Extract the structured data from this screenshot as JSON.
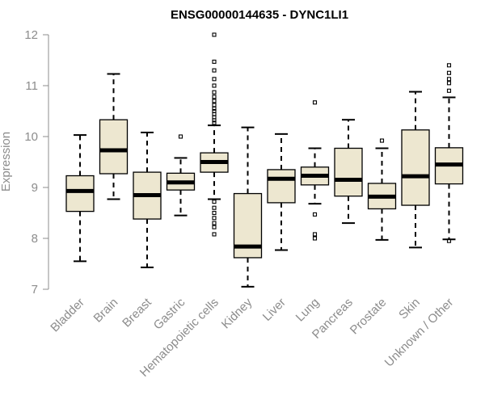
{
  "chart_data": {
    "type": "boxplot",
    "title": "ENSG00000144635 - DYNC1LI1",
    "xlabel": "",
    "ylabel": "Expression",
    "ylim": [
      7,
      12
    ],
    "yticks": [
      7,
      8,
      9,
      10,
      11,
      12
    ],
    "box_fill": "#ede7d0",
    "categories": [
      "Bladder",
      "Brain",
      "Breast",
      "Gastric",
      "Hematopoietic cells",
      "Kidney",
      "Liver",
      "Lung",
      "Pancreas",
      "Prostate",
      "Skin",
      "Unknown / Other"
    ],
    "boxes": [
      {
        "name": "Bladder",
        "min": 7.55,
        "q1": 8.53,
        "median": 8.93,
        "q3": 9.23,
        "max": 10.03,
        "outliers": []
      },
      {
        "name": "Brain",
        "min": 8.77,
        "q1": 9.27,
        "median": 9.73,
        "q3": 10.33,
        "max": 11.23,
        "outliers": []
      },
      {
        "name": "Breast",
        "min": 7.43,
        "q1": 8.38,
        "median": 8.85,
        "q3": 9.3,
        "max": 10.08,
        "outliers": []
      },
      {
        "name": "Gastric",
        "min": 8.45,
        "q1": 8.95,
        "median": 9.1,
        "q3": 9.28,
        "max": 9.58,
        "outliers": [
          10.0
        ]
      },
      {
        "name": "Hematopoietic cells",
        "min": 8.77,
        "q1": 9.3,
        "median": 9.5,
        "q3": 9.68,
        "max": 10.22,
        "outliers": [
          12.0,
          11.47,
          11.3,
          11.13,
          11.0,
          10.87,
          10.78,
          10.7,
          10.62,
          10.55,
          10.5,
          10.44,
          10.38,
          10.32,
          10.27,
          8.72,
          8.6,
          8.5,
          8.4,
          8.3,
          8.22,
          8.08
        ]
      },
      {
        "name": "Kidney",
        "min": 7.05,
        "q1": 7.62,
        "median": 7.84,
        "q3": 8.88,
        "max": 10.18,
        "outliers": []
      },
      {
        "name": "Liver",
        "min": 7.77,
        "q1": 8.7,
        "median": 9.17,
        "q3": 9.35,
        "max": 10.05,
        "outliers": []
      },
      {
        "name": "Lung",
        "min": 8.68,
        "q1": 9.05,
        "median": 9.23,
        "q3": 9.4,
        "max": 9.77,
        "outliers": [
          10.67,
          8.47,
          8.08,
          8.0
        ]
      },
      {
        "name": "Pancreas",
        "min": 8.3,
        "q1": 8.83,
        "median": 9.15,
        "q3": 9.77,
        "max": 10.33,
        "outliers": []
      },
      {
        "name": "Prostate",
        "min": 7.97,
        "q1": 8.58,
        "median": 8.82,
        "q3": 9.08,
        "max": 9.77,
        "outliers": [
          9.92
        ]
      },
      {
        "name": "Skin",
        "min": 7.82,
        "q1": 8.65,
        "median": 9.22,
        "q3": 10.13,
        "max": 10.88,
        "outliers": []
      },
      {
        "name": "Unknown / Other",
        "min": 7.98,
        "q1": 9.07,
        "median": 9.45,
        "q3": 9.78,
        "max": 10.77,
        "outliers": [
          11.4,
          11.25,
          11.13,
          11.05,
          10.9,
          7.95
        ]
      }
    ]
  }
}
